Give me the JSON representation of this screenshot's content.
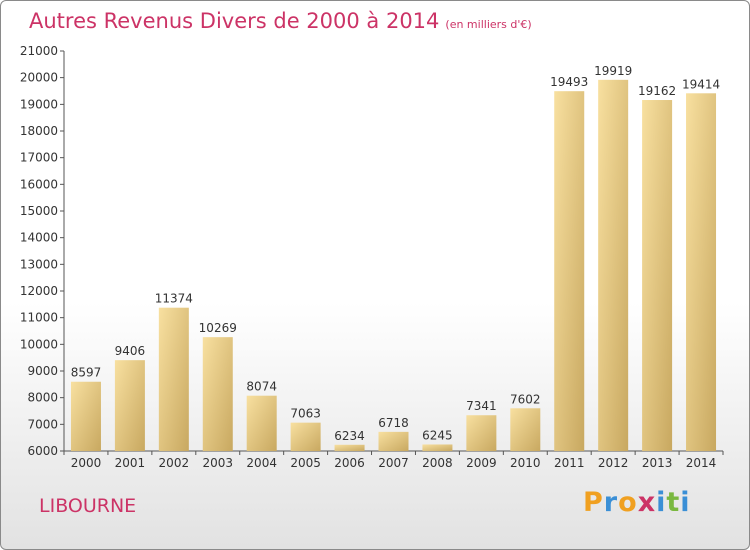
{
  "title": "Autres Revenus Divers de 2000 à 2014",
  "unit_note": "(en milliers d'€)",
  "city": "LIBOURNE",
  "logo": {
    "text": "Proxiti",
    "letters": [
      {
        "ch": "P",
        "color": "#f0a020"
      },
      {
        "ch": "r",
        "color": "#3a8fd6"
      },
      {
        "ch": "o",
        "color": "#f0a020"
      },
      {
        "ch": "x",
        "color": "#cc3366"
      },
      {
        "ch": "i",
        "color": "#3a8fd6"
      },
      {
        "ch": "t",
        "color": "#7ab840"
      },
      {
        "ch": "i",
        "color": "#3a8fd6"
      }
    ]
  },
  "colors": {
    "bar_light": "#f8e0a0",
    "bar_dark": "#c8a860",
    "accent": "#cc3366"
  },
  "chart_data": {
    "type": "bar",
    "title": "Autres Revenus Divers de 2000 à 2014",
    "xlabel": "",
    "ylabel": "",
    "categories": [
      "2000",
      "2001",
      "2002",
      "2003",
      "2004",
      "2005",
      "2006",
      "2007",
      "2008",
      "2009",
      "2010",
      "2011",
      "2012",
      "2013",
      "2014"
    ],
    "values": [
      8597,
      9406,
      11374,
      10269,
      8074,
      7063,
      6234,
      6718,
      6245,
      7341,
      7602,
      19493,
      19919,
      19162,
      19414
    ],
    "ylim": [
      6000,
      21000
    ],
    "yticks": [
      6000,
      7000,
      8000,
      9000,
      10000,
      11000,
      12000,
      13000,
      14000,
      15000,
      16000,
      17000,
      18000,
      19000,
      20000,
      21000
    ],
    "grid": false,
    "data_labels": true
  }
}
